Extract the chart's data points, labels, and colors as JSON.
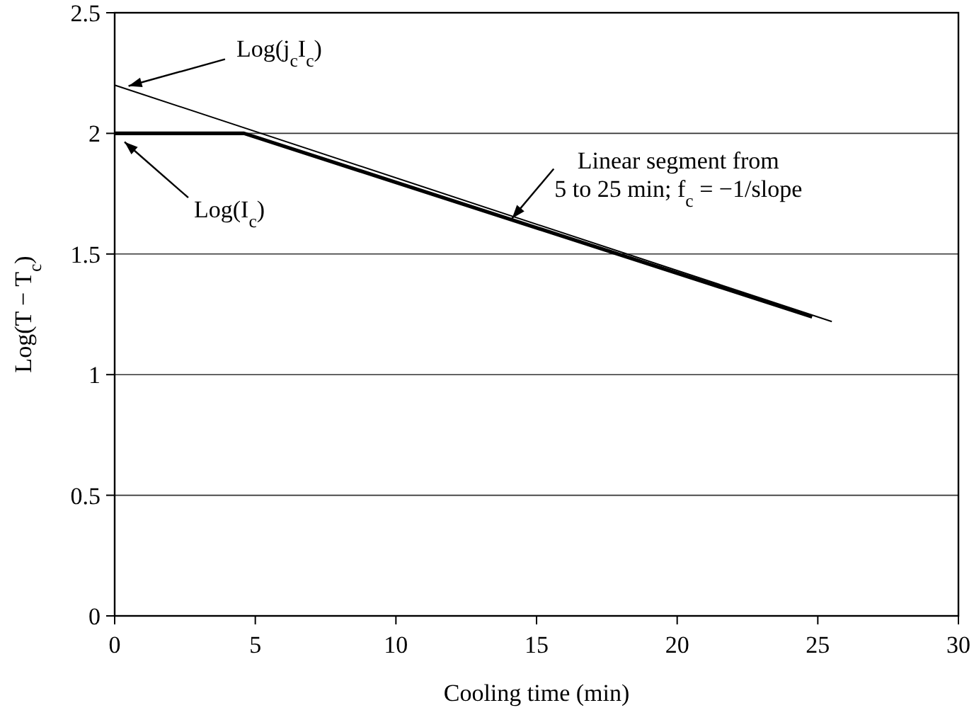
{
  "chart_data": {
    "type": "line",
    "xlabel": "Cooling time (min)",
    "ylabel": "Log(T − T$_{c}$)",
    "xlim": [
      0,
      30
    ],
    "xticks": [
      0,
      5,
      10,
      15,
      20,
      25,
      30
    ],
    "ylim": [
      0,
      2.5
    ],
    "yticks": [
      0,
      0.5,
      1,
      1.5,
      2,
      2.5
    ],
    "grid": "y",
    "marker": "none",
    "line_style": "solid",
    "series": [
      {
        "color": "#000000",
        "x": [
          0,
          25.5
        ],
        "values": [
          2.2,
          1.22
        ]
      },
      {
        "color": "#000000",
        "x": [
          0,
          4.6,
          24.8
        ],
        "values": [
          2,
          2,
          1.24
        ]
      }
    ],
    "annotations": [
      {
        "text": "Log(j$_{c}$I$_{c}$)",
        "x": 0.3,
        "y": 2.19
      },
      {
        "text": "Log(I$_{c}$)",
        "x": 0.2,
        "y": 1.98
      },
      {
        "text": "Linear segment from 5 to 25 min; f$_{c}$ = −1/slope",
        "x": 14,
        "y": 1.63
      }
    ]
  }
}
